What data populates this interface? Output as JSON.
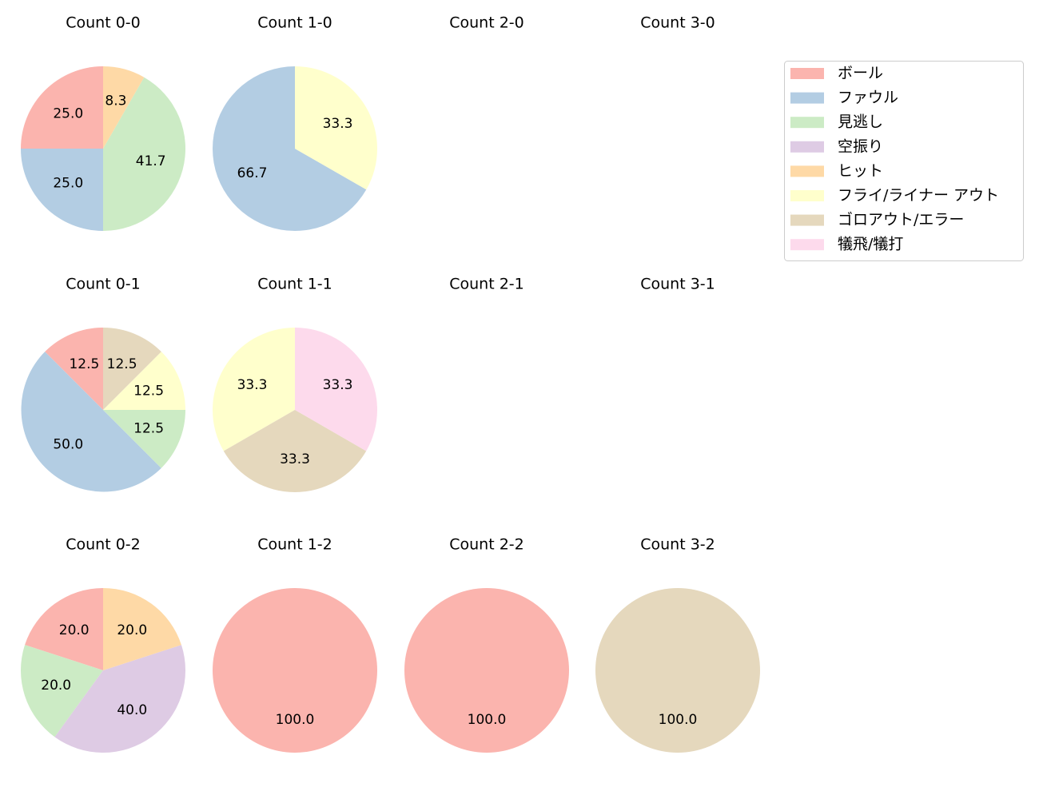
{
  "legend": {
    "categories": [
      {
        "label": "ボール",
        "color": "#fbb4ae"
      },
      {
        "label": "ファウル",
        "color": "#b3cde3"
      },
      {
        "label": "見逃し",
        "color": "#ccebc5"
      },
      {
        "label": "空振り",
        "color": "#decbe4"
      },
      {
        "label": "ヒット",
        "color": "#fed9a6"
      },
      {
        "label": "フライ/ライナー アウト",
        "color": "#ffffcc"
      },
      {
        "label": "ゴロアウト/エラー",
        "color": "#e5d8bd"
      },
      {
        "label": "犠飛/犠打",
        "color": "#fddaec"
      }
    ]
  },
  "chart_data": [
    {
      "type": "pie",
      "title": "Count 0-0",
      "slices": [
        {
          "category": "ボール",
          "value": 25.0
        },
        {
          "category": "ファウル",
          "value": 25.0
        },
        {
          "category": "見逃し",
          "value": 41.7
        },
        {
          "category": "ヒット",
          "value": 8.3
        }
      ]
    },
    {
      "type": "pie",
      "title": "Count 1-0",
      "slices": [
        {
          "category": "ファウル",
          "value": 66.7
        },
        {
          "category": "フライ/ライナー アウト",
          "value": 33.3
        }
      ]
    },
    {
      "type": "pie",
      "title": "Count 2-0",
      "slices": []
    },
    {
      "type": "pie",
      "title": "Count 3-0",
      "slices": []
    },
    {
      "type": "pie",
      "title": "Count 0-1",
      "slices": [
        {
          "category": "ボール",
          "value": 12.5
        },
        {
          "category": "ファウル",
          "value": 50.0
        },
        {
          "category": "見逃し",
          "value": 12.5
        },
        {
          "category": "フライ/ライナー アウト",
          "value": 12.5
        },
        {
          "category": "ゴロアウト/エラー",
          "value": 12.5
        }
      ]
    },
    {
      "type": "pie",
      "title": "Count 1-1",
      "slices": [
        {
          "category": "フライ/ライナー アウト",
          "value": 33.3
        },
        {
          "category": "ゴロアウト/エラー",
          "value": 33.3
        },
        {
          "category": "犠飛/犠打",
          "value": 33.3
        }
      ]
    },
    {
      "type": "pie",
      "title": "Count 2-1",
      "slices": []
    },
    {
      "type": "pie",
      "title": "Count 3-1",
      "slices": []
    },
    {
      "type": "pie",
      "title": "Count 0-2",
      "slices": [
        {
          "category": "ボール",
          "value": 20.0
        },
        {
          "category": "見逃し",
          "value": 20.0
        },
        {
          "category": "空振り",
          "value": 40.0
        },
        {
          "category": "ヒット",
          "value": 20.0
        }
      ]
    },
    {
      "type": "pie",
      "title": "Count 1-2",
      "slices": [
        {
          "category": "ボール",
          "value": 100.0
        }
      ]
    },
    {
      "type": "pie",
      "title": "Count 2-2",
      "slices": [
        {
          "category": "ボール",
          "value": 100.0
        }
      ]
    },
    {
      "type": "pie",
      "title": "Count 3-2",
      "slices": [
        {
          "category": "ゴロアウト/エラー",
          "value": 100.0
        }
      ]
    }
  ]
}
